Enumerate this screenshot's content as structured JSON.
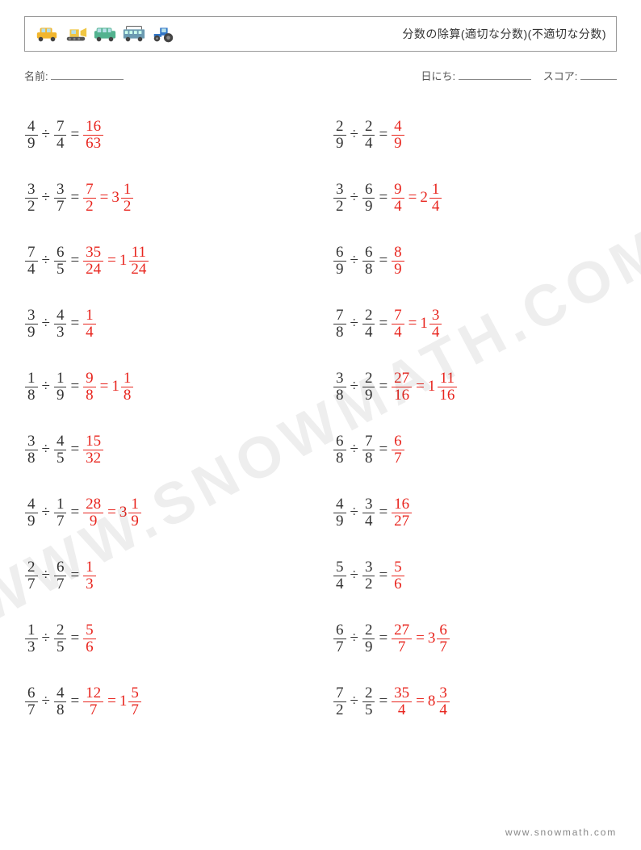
{
  "header": {
    "title": "分数の除算(適切な分数)(不適切な分数)",
    "vehicle_colors": {
      "car": "#f2b62e",
      "bulldozer": "#f0c643",
      "van": "#52b28f",
      "bus": "#6b9ab1",
      "tractor": "#3276c7"
    }
  },
  "info": {
    "name_label": "名前:",
    "date_label": "日にち:",
    "score_label": "スコア:"
  },
  "colors": {
    "text": "#333333",
    "answer": "#e8251e",
    "border": "#999999",
    "watermark": "#222222",
    "footer": "#888888"
  },
  "typography": {
    "body_fontsize": 19,
    "title_fontsize": 14,
    "info_fontsize": 13,
    "watermark_fontsize": 72,
    "footer_fontsize": 12
  },
  "watermark": "WWW.SNOWMATH.COM",
  "footer": "www.snowmath.com",
  "problems": {
    "left": [
      {
        "a": {
          "n": 4,
          "d": 9
        },
        "b": {
          "n": 7,
          "d": 4
        },
        "ans": {
          "n": 16,
          "d": 63
        }
      },
      {
        "a": {
          "n": 3,
          "d": 2
        },
        "b": {
          "n": 3,
          "d": 7
        },
        "ans": {
          "n": 7,
          "d": 2
        },
        "mixed": {
          "w": 3,
          "n": 1,
          "d": 2
        }
      },
      {
        "a": {
          "n": 7,
          "d": 4
        },
        "b": {
          "n": 6,
          "d": 5
        },
        "ans": {
          "n": 35,
          "d": 24
        },
        "mixed": {
          "w": 1,
          "n": 11,
          "d": 24
        }
      },
      {
        "a": {
          "n": 3,
          "d": 9
        },
        "b": {
          "n": 4,
          "d": 3
        },
        "ans": {
          "n": 1,
          "d": 4
        }
      },
      {
        "a": {
          "n": 1,
          "d": 8
        },
        "b": {
          "n": 1,
          "d": 9
        },
        "ans": {
          "n": 9,
          "d": 8
        },
        "mixed": {
          "w": 1,
          "n": 1,
          "d": 8
        }
      },
      {
        "a": {
          "n": 3,
          "d": 8
        },
        "b": {
          "n": 4,
          "d": 5
        },
        "ans": {
          "n": 15,
          "d": 32
        }
      },
      {
        "a": {
          "n": 4,
          "d": 9
        },
        "b": {
          "n": 1,
          "d": 7
        },
        "ans": {
          "n": 28,
          "d": 9
        },
        "mixed": {
          "w": 3,
          "n": 1,
          "d": 9
        }
      },
      {
        "a": {
          "n": 2,
          "d": 7
        },
        "b": {
          "n": 6,
          "d": 7
        },
        "ans": {
          "n": 1,
          "d": 3
        }
      },
      {
        "a": {
          "n": 1,
          "d": 3
        },
        "b": {
          "n": 2,
          "d": 5
        },
        "ans": {
          "n": 5,
          "d": 6
        }
      },
      {
        "a": {
          "n": 6,
          "d": 7
        },
        "b": {
          "n": 4,
          "d": 8
        },
        "ans": {
          "n": 12,
          "d": 7
        },
        "mixed": {
          "w": 1,
          "n": 5,
          "d": 7
        }
      }
    ],
    "right": [
      {
        "a": {
          "n": 2,
          "d": 9
        },
        "b": {
          "n": 2,
          "d": 4
        },
        "ans": {
          "n": 4,
          "d": 9
        }
      },
      {
        "a": {
          "n": 3,
          "d": 2
        },
        "b": {
          "n": 6,
          "d": 9
        },
        "ans": {
          "n": 9,
          "d": 4
        },
        "mixed": {
          "w": 2,
          "n": 1,
          "d": 4
        }
      },
      {
        "a": {
          "n": 6,
          "d": 9
        },
        "b": {
          "n": 6,
          "d": 8
        },
        "ans": {
          "n": 8,
          "d": 9
        }
      },
      {
        "a": {
          "n": 7,
          "d": 8
        },
        "b": {
          "n": 2,
          "d": 4
        },
        "ans": {
          "n": 7,
          "d": 4
        },
        "mixed": {
          "w": 1,
          "n": 3,
          "d": 4
        }
      },
      {
        "a": {
          "n": 3,
          "d": 8
        },
        "b": {
          "n": 2,
          "d": 9
        },
        "ans": {
          "n": 27,
          "d": 16
        },
        "mixed": {
          "w": 1,
          "n": 11,
          "d": 16
        }
      },
      {
        "a": {
          "n": 6,
          "d": 8
        },
        "b": {
          "n": 7,
          "d": 8
        },
        "ans": {
          "n": 6,
          "d": 7
        }
      },
      {
        "a": {
          "n": 4,
          "d": 9
        },
        "b": {
          "n": 3,
          "d": 4
        },
        "ans": {
          "n": 16,
          "d": 27
        }
      },
      {
        "a": {
          "n": 5,
          "d": 4
        },
        "b": {
          "n": 3,
          "d": 2
        },
        "ans": {
          "n": 5,
          "d": 6
        }
      },
      {
        "a": {
          "n": 6,
          "d": 7
        },
        "b": {
          "n": 2,
          "d": 9
        },
        "ans": {
          "n": 27,
          "d": 7
        },
        "mixed": {
          "w": 3,
          "n": 6,
          "d": 7
        }
      },
      {
        "a": {
          "n": 7,
          "d": 2
        },
        "b": {
          "n": 2,
          "d": 5
        },
        "ans": {
          "n": 35,
          "d": 4
        },
        "mixed": {
          "w": 8,
          "n": 3,
          "d": 4
        }
      }
    ]
  }
}
